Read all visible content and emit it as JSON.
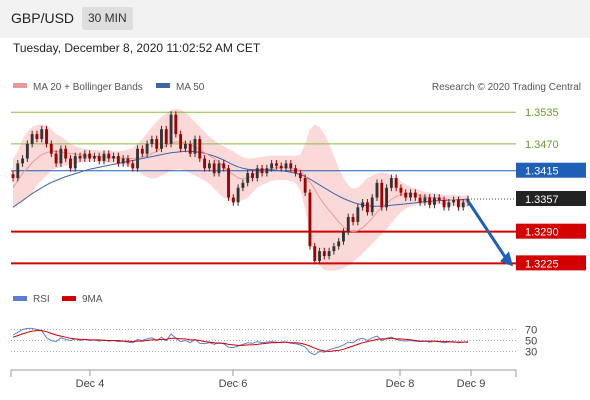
{
  "header": {
    "symbol": "GBP/USD",
    "timeframe": "30 MIN",
    "datetime": "Tuesday, December 8, 2020 11:02:52 AM CET"
  },
  "legend": {
    "ma20": "MA 20 + Bollinger Bands",
    "ma50": "MA 50",
    "credit": "Research © 2020 Trading Central",
    "rsi": "RSI",
    "rsi_ma": "9MA"
  },
  "colors": {
    "support": "#d40000",
    "pivot": "#1f5fb8",
    "resistance": "#8cb84a",
    "up_candle": "#333333",
    "down_candle": "#a00000",
    "ma20": "#e89a9a",
    "ma50": "#3f64a8",
    "band_fill": "#fbd9d9",
    "last": "#222222",
    "rsi": "#5b7fd6",
    "rsi_ma": "#d40000"
  },
  "chart_data": {
    "type": "candlestick",
    "y_range": [
      1.3195,
      1.356
    ],
    "x_labels": [
      "Dec 4",
      "Dec 6",
      "Dec 8",
      "Dec 9"
    ],
    "levels": [
      {
        "value": 1.3535,
        "label": "1.3535",
        "kind": "resistance"
      },
      {
        "value": 1.347,
        "label": "1.3470",
        "kind": "resistance"
      },
      {
        "value": 1.3415,
        "label": "1.3415",
        "kind": "pivot"
      },
      {
        "value": 1.3357,
        "label": "1.3357",
        "kind": "last"
      },
      {
        "value": 1.329,
        "label": "1.3290",
        "kind": "support"
      },
      {
        "value": 1.3225,
        "label": "1.3225",
        "kind": "support"
      }
    ],
    "closes": [
      1.34,
      1.343,
      1.344,
      1.347,
      1.349,
      1.348,
      1.35,
      1.347,
      1.345,
      1.343,
      1.346,
      1.344,
      1.342,
      1.3445,
      1.344,
      1.345,
      1.344,
      1.3445,
      1.3435,
      1.345,
      1.344,
      1.3445,
      1.343,
      1.344,
      1.343,
      1.342,
      1.346,
      1.345,
      1.347,
      1.348,
      1.346,
      1.35,
      1.347,
      1.353,
      1.349,
      1.346,
      1.347,
      1.345,
      1.348,
      1.344,
      1.342,
      1.343,
      1.341,
      1.343,
      1.342,
      1.336,
      1.335,
      1.338,
      1.339,
      1.341,
      1.34,
      1.342,
      1.341,
      1.342,
      1.343,
      1.3425,
      1.342,
      1.343,
      1.342,
      1.341,
      1.34,
      1.337,
      1.326,
      1.323,
      1.325,
      1.324,
      1.325,
      1.326,
      1.327,
      1.329,
      1.332,
      1.331,
      1.334,
      1.335,
      1.333,
      1.336,
      1.339,
      1.334,
      1.338,
      1.34,
      1.338,
      1.337,
      1.336,
      1.337,
      1.336,
      1.335,
      1.336,
      1.3345,
      1.336,
      1.3355,
      1.334,
      1.335,
      1.3355,
      1.334,
      1.335,
      1.3357
    ],
    "ma20": [
      1.338,
      1.3395,
      1.341,
      1.342,
      1.3432,
      1.344,
      1.3448,
      1.3452,
      1.3455,
      1.3455,
      1.3453,
      1.3452,
      1.345,
      1.3449,
      1.3447,
      1.3446,
      1.3445,
      1.3445,
      1.3444,
      1.3443,
      1.3443,
      1.3442,
      1.3441,
      1.3441,
      1.344,
      1.344,
      1.3441,
      1.3443,
      1.3446,
      1.345,
      1.3455,
      1.3462,
      1.3467,
      1.3472,
      1.3474,
      1.3474,
      1.3472,
      1.3468,
      1.3464,
      1.3458,
      1.3452,
      1.3446,
      1.344,
      1.3432,
      1.3424,
      1.3414,
      1.3407,
      1.34,
      1.3398,
      1.34,
      1.3405,
      1.341,
      1.3414,
      1.3417,
      1.342,
      1.3421,
      1.3421,
      1.3421,
      1.342,
      1.3418,
      1.3414,
      1.3405,
      1.3392,
      1.3377,
      1.336,
      1.3346,
      1.3334,
      1.3322,
      1.331,
      1.33,
      1.3293,
      1.329,
      1.3292,
      1.3298,
      1.3307,
      1.3318,
      1.333,
      1.334,
      1.3348,
      1.3356,
      1.3362,
      1.3366,
      1.3368,
      1.3368,
      1.3366,
      1.3364,
      1.3362,
      1.336,
      1.3359,
      1.3358,
      1.3357,
      1.3356,
      1.3355,
      1.3354,
      1.3353,
      1.3353
    ],
    "ma50": [
      1.334,
      1.3347,
      1.3354,
      1.3361,
      1.3368,
      1.3374,
      1.338,
      1.3386,
      1.3391,
      1.3395,
      1.3399,
      1.3403,
      1.3406,
      1.3409,
      1.3412,
      1.3415,
      1.3418,
      1.342,
      1.3422,
      1.3424,
      1.3426,
      1.3428,
      1.343,
      1.3432,
      1.3434,
      1.3436,
      1.3438,
      1.344,
      1.3442,
      1.3444,
      1.3446,
      1.3448,
      1.345,
      1.3452,
      1.3453,
      1.3454,
      1.3455,
      1.3455,
      1.3454,
      1.3453,
      1.3451,
      1.3448,
      1.3445,
      1.3441,
      1.3437,
      1.3432,
      1.3427,
      1.3423,
      1.342,
      1.3418,
      1.3417,
      1.3417,
      1.3417,
      1.3417,
      1.3417,
      1.3416,
      1.3415,
      1.3414,
      1.3412,
      1.341,
      1.3407,
      1.3403,
      1.3398,
      1.3392,
      1.3386,
      1.338,
      1.3374,
      1.3368,
      1.3363,
      1.3358,
      1.3354,
      1.335,
      1.3347,
      1.3345,
      1.3343,
      1.3342,
      1.3342,
      1.3342,
      1.3343,
      1.3344,
      1.3345,
      1.3346,
      1.3347,
      1.3348,
      1.3349,
      1.335,
      1.3351,
      1.3352,
      1.3353,
      1.3354,
      1.3354,
      1.3355,
      1.3355,
      1.3356,
      1.3356,
      1.3357
    ],
    "bb_upper": [
      1.344,
      1.3455,
      1.348,
      1.3495,
      1.3505,
      1.3508,
      1.351,
      1.3508,
      1.35,
      1.349,
      1.3485,
      1.3478,
      1.347,
      1.3465,
      1.3462,
      1.346,
      1.3458,
      1.3458,
      1.3457,
      1.3456,
      1.3456,
      1.3455,
      1.3455,
      1.3456,
      1.3458,
      1.3462,
      1.347,
      1.348,
      1.3492,
      1.3505,
      1.3515,
      1.3525,
      1.3532,
      1.354,
      1.3542,
      1.354,
      1.3535,
      1.3525,
      1.3515,
      1.3505,
      1.3495,
      1.3485,
      1.3478,
      1.347,
      1.3465,
      1.346,
      1.3455,
      1.3448,
      1.3443,
      1.344,
      1.344,
      1.3442,
      1.3444,
      1.3445,
      1.3446,
      1.3446,
      1.3446,
      1.3446,
      1.3446,
      1.3445,
      1.3448,
      1.347,
      1.35,
      1.351,
      1.3505,
      1.349,
      1.347,
      1.3445,
      1.342,
      1.34,
      1.3385,
      1.3378,
      1.338,
      1.339,
      1.34,
      1.3405,
      1.341,
      1.3412,
      1.341,
      1.3405,
      1.34,
      1.3393,
      1.3387,
      1.3382,
      1.3378,
      1.3375,
      1.3372,
      1.337,
      1.3368,
      1.3367,
      1.3366,
      1.3365,
      1.3365,
      1.3364,
      1.3364,
      1.3364
    ],
    "bb_lower": [
      1.334,
      1.3345,
      1.335,
      1.336,
      1.337,
      1.3385,
      1.3395,
      1.3405,
      1.3415,
      1.342,
      1.3422,
      1.3425,
      1.3427,
      1.343,
      1.3432,
      1.3433,
      1.3434,
      1.3434,
      1.3433,
      1.3432,
      1.3431,
      1.343,
      1.3428,
      1.3426,
      1.3424,
      1.342,
      1.3415,
      1.3408,
      1.3402,
      1.3398,
      1.34,
      1.3405,
      1.341,
      1.3415,
      1.3418,
      1.3418,
      1.3415,
      1.341,
      1.3405,
      1.34,
      1.3395,
      1.3388,
      1.3378,
      1.3368,
      1.336,
      1.3355,
      1.3352,
      1.3352,
      1.3355,
      1.336,
      1.337,
      1.338,
      1.3386,
      1.339,
      1.3394,
      1.3396,
      1.3396,
      1.3396,
      1.3394,
      1.339,
      1.3375,
      1.3335,
      1.3275,
      1.324,
      1.322,
      1.3212,
      1.321,
      1.321,
      1.3212,
      1.3215,
      1.322,
      1.3228,
      1.3236,
      1.3245,
      1.3255,
      1.3265,
      1.3275,
      1.3285,
      1.3295,
      1.3307,
      1.332,
      1.333,
      1.3337,
      1.3342,
      1.3345,
      1.3346,
      1.3347,
      1.3347,
      1.3347,
      1.3346,
      1.3345,
      1.3344,
      1.3343,
      1.3342,
      1.3341,
      1.334
    ],
    "projection": {
      "from": 1.3357,
      "to": 1.3225
    },
    "rsi": {
      "range": [
        0,
        100
      ],
      "levels": [
        70,
        50,
        30
      ],
      "values": [
        60,
        65,
        70,
        72,
        72,
        70,
        68,
        55,
        50,
        48,
        55,
        52,
        50,
        53,
        50,
        52,
        50,
        51,
        49,
        51,
        49,
        50,
        48,
        49,
        47,
        46,
        52,
        50,
        53,
        55,
        50,
        56,
        50,
        62,
        54,
        48,
        50,
        46,
        52,
        45,
        44,
        46,
        43,
        46,
        44,
        38,
        37,
        40,
        43,
        46,
        45,
        48,
        46,
        47,
        48,
        47,
        46,
        47,
        45,
        44,
        42,
        38,
        28,
        24,
        30,
        29,
        33,
        36,
        38,
        42,
        47,
        46,
        52,
        54,
        50,
        55,
        58,
        50,
        54,
        56,
        52,
        50,
        49,
        50,
        49,
        48,
        49,
        47,
        49,
        48,
        46,
        47,
        48,
        46,
        47,
        48
      ],
      "ma": [
        56,
        59,
        62,
        65,
        67,
        68,
        68,
        66,
        63,
        60,
        58,
        56,
        54,
        53,
        52,
        52,
        51,
        51,
        51,
        50,
        50,
        50,
        50,
        49,
        49,
        48,
        49,
        49,
        50,
        51,
        51,
        52,
        52,
        54,
        54,
        53,
        53,
        51,
        51,
        50,
        48,
        47,
        46,
        45,
        45,
        43,
        42,
        41,
        41,
        42,
        42,
        43,
        44,
        45,
        46,
        46,
        47,
        47,
        46,
        46,
        45,
        43,
        40,
        36,
        33,
        31,
        30,
        31,
        32,
        34,
        37,
        40,
        43,
        46,
        48,
        50,
        52,
        53,
        53,
        54,
        53,
        53,
        52,
        51,
        50,
        49,
        49,
        49,
        49,
        48,
        48,
        48,
        47,
        47,
        47,
        47
      ]
    }
  }
}
